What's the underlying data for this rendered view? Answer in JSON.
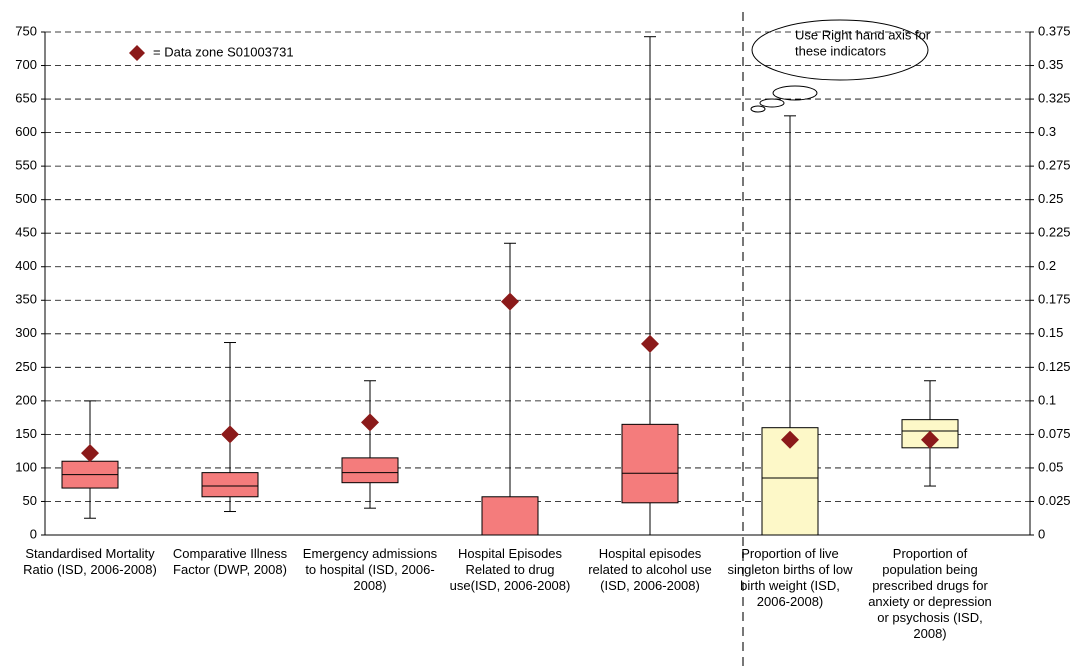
{
  "chart_data": {
    "type": "box",
    "categories": [
      "Standardised Mortality Ratio (ISD, 2006-2008)",
      "Comparative Illness Factor (DWP, 2008)",
      "Emergency admissions to hospital (ISD, 2006-2008)",
      "Hospital Episodes Related to drug use(ISD, 2006-2008)",
      "Hospital episodes related to alcohol use (ISD, 2006-2008)",
      "Proportion of live singleton births of low birth weight (ISD, 2006-2008)",
      "Proportion of population being prescribed drugs for anxiety or depression or psychosis (ISD, 2008)"
    ],
    "axis": [
      "y",
      "y",
      "y",
      "y",
      "y",
      "y2",
      "y2"
    ],
    "box_colors": [
      "#f47c7c",
      "#f47c7c",
      "#f47c7c",
      "#f47c7c",
      "#f47c7c",
      "#fdf8c8",
      "#fdf8c8"
    ],
    "min": [
      25,
      35,
      40,
      0,
      0,
      0,
      0.0365
    ],
    "q1": [
      70,
      57,
      78,
      0,
      48,
      0,
      0.065
    ],
    "median": [
      90,
      73,
      93,
      0,
      92,
      0.0425,
      0.0775
    ],
    "q3": [
      110,
      93,
      115,
      57,
      165,
      0.08,
      0.086
    ],
    "max": [
      200,
      287,
      230,
      435,
      743,
      0.3125,
      0.115
    ],
    "series": [
      {
        "name": "= Data zone S01003731",
        "color": "#8b1a1a",
        "values": [
          122,
          150,
          168,
          348,
          285,
          0.071,
          0.071
        ]
      }
    ],
    "annotation": [
      "Use Right hand axis for",
      "these indicators"
    ],
    "ylim": [
      0,
      750
    ],
    "yticks": [
      0,
      50,
      100,
      150,
      200,
      250,
      300,
      350,
      400,
      450,
      500,
      550,
      600,
      650,
      700,
      750
    ],
    "y2lim": [
      0,
      0.375
    ],
    "y2ticks": [
      0,
      0.025,
      0.05,
      0.075,
      0.1,
      0.125,
      0.15,
      0.175,
      0.2,
      0.225,
      0.25,
      0.275,
      0.3,
      0.325,
      0.35,
      0.375
    ],
    "grid": true
  }
}
